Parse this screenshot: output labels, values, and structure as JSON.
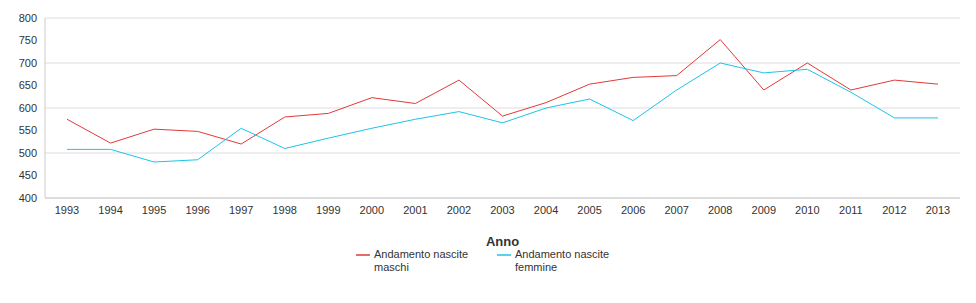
{
  "chart_data": {
    "type": "line",
    "x_label": "Anno",
    "categories": [
      "1993",
      "1994",
      "1995",
      "1996",
      "1997",
      "1998",
      "1999",
      "2000",
      "2001",
      "2002",
      "2003",
      "2004",
      "2005",
      "2006",
      "2007",
      "2008",
      "2009",
      "2010",
      "2011",
      "2012",
      "2013"
    ],
    "series": [
      {
        "name": "Andamento nascite maschi",
        "color": "#e03a3a",
        "values": [
          575,
          522,
          553,
          548,
          520,
          580,
          588,
          623,
          610,
          662,
          582,
          612,
          653,
          668,
          672,
          752,
          640,
          700,
          640,
          662,
          653
        ]
      },
      {
        "name": "Andamento nascite femmine",
        "color": "#1cc4e8",
        "values": [
          508,
          508,
          480,
          485,
          555,
          510,
          533,
          555,
          575,
          592,
          567,
          600,
          620,
          572,
          640,
          700,
          678,
          686,
          635,
          578,
          578
        ]
      }
    ],
    "ylim": [
      400,
      800
    ],
    "yticks": [
      400,
      450,
      500,
      550,
      600,
      650,
      700,
      750,
      800
    ],
    "grid": true,
    "legend": "bottom"
  }
}
